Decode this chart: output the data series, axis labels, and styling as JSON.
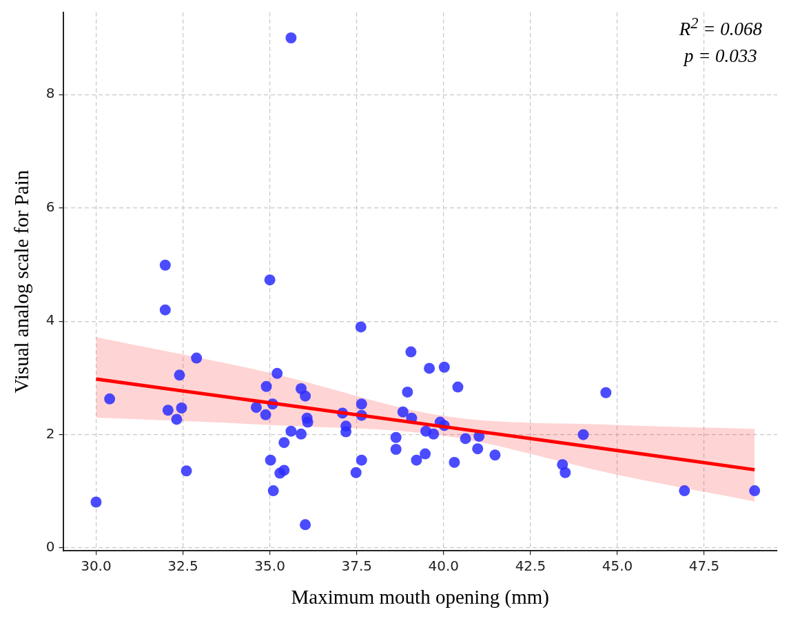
{
  "chart_data": {
    "type": "scatter",
    "xlabel": "Maximum mouth opening (mm)",
    "ylabel": "Visual analog scale for Pain",
    "annotations": [
      "R$^{2}$ = 0.068",
      "p = 0.033"
    ],
    "xlim": [
      29.05,
      49.6
    ],
    "ylim": [
      -0.05,
      9.45
    ],
    "xticks": [
      {
        "value": 30,
        "label": "30.0"
      },
      {
        "value": 32.5,
        "label": "32.5"
      },
      {
        "value": 35,
        "label": "35.0"
      },
      {
        "value": 37.5,
        "label": "37.5"
      },
      {
        "value": 40,
        "label": "40.0"
      },
      {
        "value": 42.5,
        "label": "42.5"
      },
      {
        "value": 45,
        "label": "45.0"
      },
      {
        "value": 47.5,
        "label": "47.5"
      }
    ],
    "yticks": [
      0,
      2,
      4,
      6,
      8
    ],
    "grid": true,
    "legend": false,
    "marker": "circle",
    "series": [
      {
        "color": "#2b2bff",
        "x": [
          30.0,
          30.39,
          31.99,
          31.99,
          32.07,
          32.32,
          32.4,
          32.46,
          32.6,
          32.89,
          34.61,
          34.88,
          34.9,
          35.0,
          35.02,
          35.08,
          35.1,
          35.21,
          35.29,
          35.41,
          35.41,
          35.61,
          35.61,
          35.9,
          35.9,
          36.02,
          36.02,
          36.07,
          36.09,
          37.09,
          37.19,
          37.19,
          37.48,
          37.62,
          37.64,
          37.64,
          37.64,
          38.63,
          38.63,
          38.83,
          38.96,
          39.06,
          39.08,
          39.22,
          39.47,
          39.49,
          39.59,
          39.71,
          39.9,
          40.02,
          40.02,
          40.31,
          40.41,
          40.63,
          40.98,
          41.02,
          41.48,
          43.42,
          43.5,
          44.02,
          44.67,
          46.93,
          48.95
        ],
        "values": [
          0.81,
          2.63,
          4.99,
          4.2,
          2.43,
          2.27,
          3.05,
          2.47,
          1.36,
          3.35,
          2.48,
          2.35,
          2.85,
          4.73,
          1.55,
          2.54,
          1.01,
          3.08,
          1.32,
          1.37,
          1.86,
          2.06,
          9.0,
          2.81,
          2.01,
          2.68,
          0.41,
          2.29,
          2.22,
          2.38,
          2.15,
          2.05,
          1.33,
          3.9,
          2.54,
          2.34,
          1.55,
          1.95,
          1.74,
          2.4,
          2.75,
          3.46,
          2.29,
          1.55,
          1.66,
          2.06,
          3.17,
          2.01,
          2.22,
          2.16,
          3.19,
          1.51,
          2.84,
          1.93,
          1.75,
          1.97,
          1.64,
          1.47,
          1.33,
          2.0,
          2.74,
          1.01,
          1.01
        ]
      },
      {
        "type": "line",
        "marker": "none",
        "color": "#ff0000",
        "x": [
          30,
          35,
          40,
          45,
          48.95
        ],
        "values": [
          2.98,
          2.56,
          2.14,
          1.72,
          1.38
        ],
        "lower": [
          2.3,
          2.17,
          1.98,
          1.29,
          0.82
        ],
        "upper": [
          3.72,
          3.09,
          2.33,
          2.17,
          2.1
        ]
      }
    ]
  }
}
